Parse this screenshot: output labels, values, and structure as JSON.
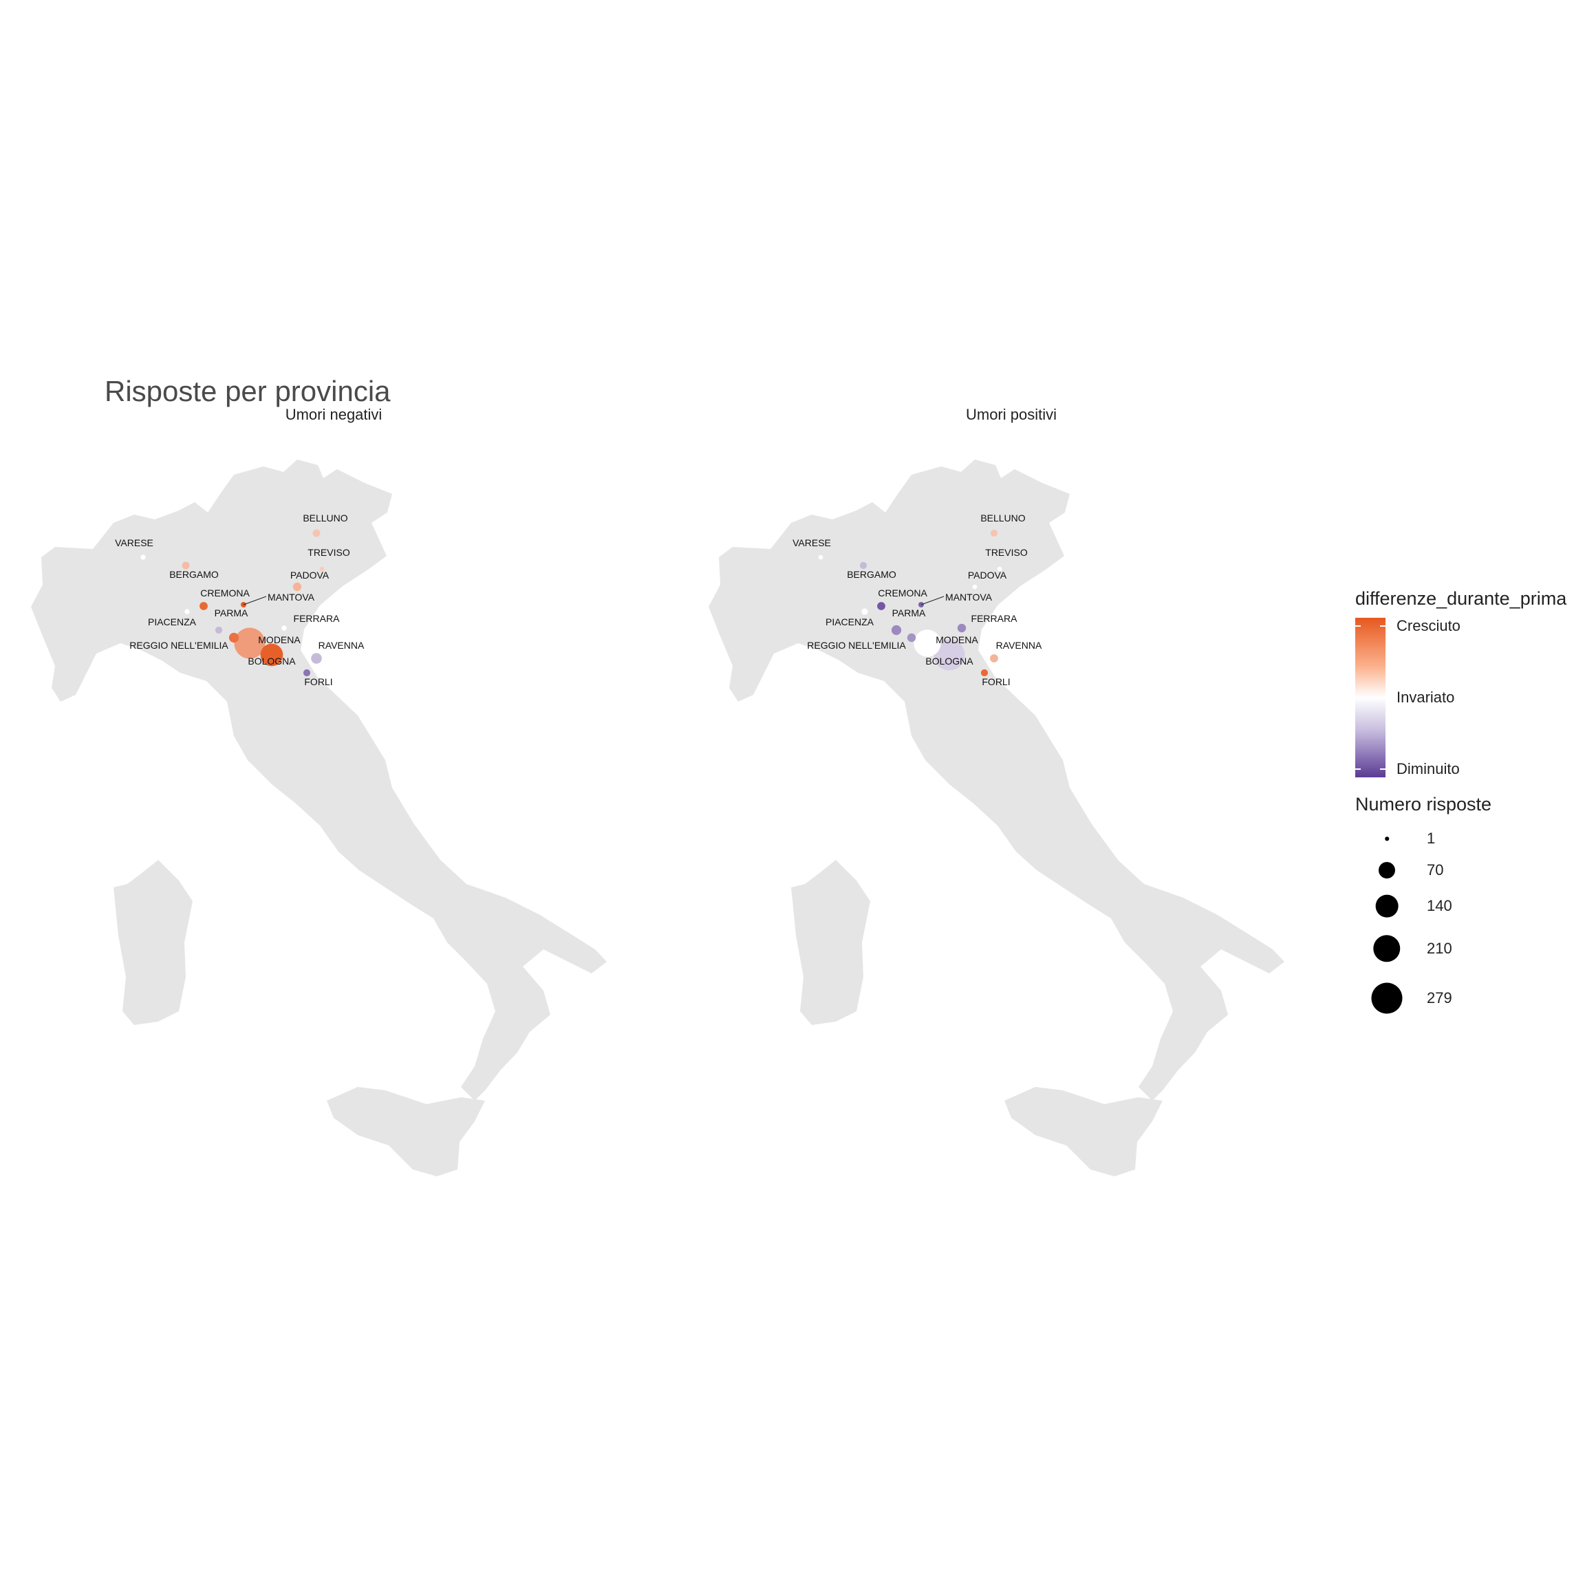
{
  "title": "Risposte per provincia",
  "panels": [
    {
      "id": "negativi",
      "title": "Umori negativi",
      "labels": [
        "BELLUNO",
        "VARESE",
        "TREVISO",
        "BERGAMO",
        "PADOVA",
        "CREMONA",
        "MANTOVA",
        "FERRARA",
        "PIACENZA",
        "PARMA",
        "MODENA",
        "REGGIO NELL'EMILIA",
        "RAVENNA",
        "BOLOGNA",
        "FORLI"
      ],
      "points": [
        {
          "name": "BELLUNO",
          "responses": 10,
          "change": 0.35
        },
        {
          "name": "VARESE",
          "responses": 3,
          "change": 0.0
        },
        {
          "name": "TREVISO",
          "responses": 2,
          "change": 0.3
        },
        {
          "name": "BERGAMO",
          "responses": 10,
          "change": 0.4
        },
        {
          "name": "PADOVA",
          "responses": 14,
          "change": 0.45
        },
        {
          "name": "CREMONA",
          "responses": 12,
          "change": 0.9
        },
        {
          "name": "MANTOVA",
          "responses": 4,
          "change": 1.0
        },
        {
          "name": "FERRARA",
          "responses": 3,
          "change": 0.0
        },
        {
          "name": "PIACENZA",
          "responses": 3,
          "change": 0.0
        },
        {
          "name": "PARMA",
          "responses": 8,
          "change": -0.35
        },
        {
          "name": "MODENA",
          "responses": 279,
          "change": 0.6
        },
        {
          "name": "REGGIO NELL'EMILIA",
          "responses": 20,
          "change": 0.85
        },
        {
          "name": "RAVENNA",
          "responses": 25,
          "change": -0.35
        },
        {
          "name": "BOLOGNA",
          "responses": 140,
          "change": 0.95
        },
        {
          "name": "FORLI",
          "responses": 8,
          "change": -0.7
        }
      ]
    },
    {
      "id": "positivi",
      "title": "Umori positivi",
      "labels": [
        "BELLUNO",
        "VARESE",
        "TREVISO",
        "BERGAMO",
        "PADOVA",
        "CREMONA",
        "MANTOVA",
        "FERRARA",
        "PIACENZA",
        "PARMA",
        "MODENA",
        "REGGIO NELL'EMILIA",
        "RAVENNA",
        "BOLOGNA",
        "FORLI"
      ],
      "points": [
        {
          "name": "BELLUNO",
          "responses": 8,
          "change": 0.35
        },
        {
          "name": "VARESE",
          "responses": 2,
          "change": 0.0
        },
        {
          "name": "TREVISO",
          "responses": 2,
          "change": 0.0
        },
        {
          "name": "BERGAMO",
          "responses": 8,
          "change": -0.35
        },
        {
          "name": "PADOVA",
          "responses": 2,
          "change": 0.0
        },
        {
          "name": "CREMONA",
          "responses": 12,
          "change": -0.85
        },
        {
          "name": "MANTOVA",
          "responses": 4,
          "change": -0.8
        },
        {
          "name": "FERRARA",
          "responses": 14,
          "change": -0.6
        },
        {
          "name": "PIACENZA",
          "responses": 6,
          "change": 0.0
        },
        {
          "name": "PARMA",
          "responses": 20,
          "change": -0.6
        },
        {
          "name": "MODENA",
          "responses": 210,
          "change": 0.0
        },
        {
          "name": "REGGIO NELL'EMILIA",
          "responses": 14,
          "change": -0.55
        },
        {
          "name": "RAVENNA",
          "responses": 12,
          "change": 0.45
        },
        {
          "name": "BOLOGNA",
          "responses": 279,
          "change": -0.25
        },
        {
          "name": "FORLI",
          "responses": 8,
          "change": 0.9
        }
      ]
    }
  ],
  "legend": {
    "color_title": "differenze_durante_prima",
    "color_labels": [
      "Cresciuto",
      "Invariato",
      "Diminuito"
    ],
    "size_title": "Numero risposte",
    "size_breaks": [
      1,
      70,
      140,
      210,
      279
    ]
  },
  "colors": {
    "land": "#e5e5e5",
    "increase": "#e6581f",
    "neutral": "#ffffff",
    "decrease": "#5b3a94"
  }
}
